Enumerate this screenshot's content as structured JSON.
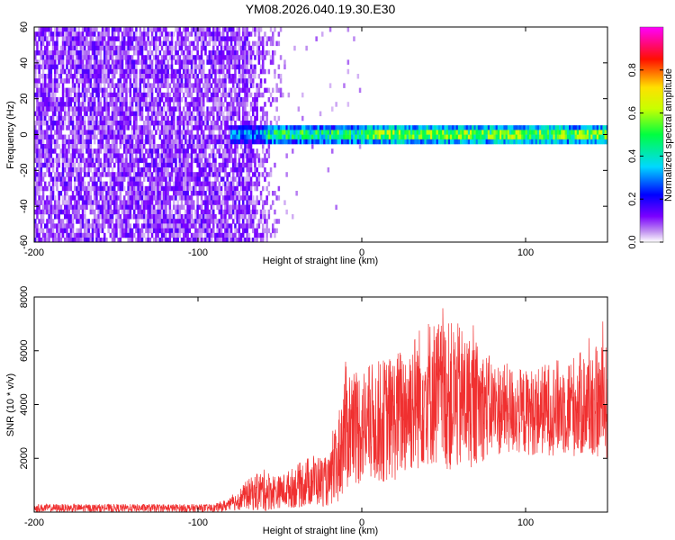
{
  "title": "YM08.2026.040.19.30.E30",
  "chart_data": [
    {
      "type": "heatmap",
      "xlabel": "Height of straight line (km)",
      "ylabel": "Frequency (Hz)",
      "xlim": [
        -200,
        150
      ],
      "ylim": [
        -60,
        60
      ],
      "xticks": [
        -200,
        -100,
        0,
        100
      ],
      "yticks": [
        -60,
        -40,
        -20,
        0,
        20,
        40,
        60
      ],
      "colorbar": {
        "label": "Normalized spectral amplitude",
        "range": [
          0.0,
          1.0
        ],
        "ticks": [
          "0.0",
          "0.2",
          "0.4",
          "0.6",
          "0.8"
        ],
        "colormap": [
          "#ffffff",
          "#c090f0",
          "#7a00ff",
          "#0000ff",
          "#00d8ff",
          "#00ff40",
          "#c8ff00",
          "#ffe000",
          "#ff1000",
          "#ff00ff"
        ]
      },
      "features": {
        "noise_region_x": [
          -200,
          -48
        ],
        "signal_start_x": -80,
        "signal_freq_center_hz": 0,
        "signal_band_halfwidth_hz": 5,
        "peak_amplitude": 1.0
      },
      "grid": false
    },
    {
      "type": "line",
      "xlabel": "Height of straight line (km)",
      "ylabel": "SNR (10 * v/v)",
      "xlim": [
        -200,
        150
      ],
      "ylim": [
        0,
        8000
      ],
      "xticks": [
        -200,
        -100,
        0,
        100
      ],
      "yticks": [
        2000,
        4000,
        6000,
        8000
      ],
      "series_color": "#f03030",
      "envelope": [
        {
          "x": -200,
          "mean": 150,
          "spread": 150
        },
        {
          "x": -150,
          "mean": 150,
          "spread": 150
        },
        {
          "x": -100,
          "mean": 150,
          "spread": 150
        },
        {
          "x": -90,
          "mean": 150,
          "spread": 150
        },
        {
          "x": -80,
          "mean": 280,
          "spread": 250
        },
        {
          "x": -70,
          "mean": 650,
          "spread": 550
        },
        {
          "x": -60,
          "mean": 800,
          "spread": 800
        },
        {
          "x": -50,
          "mean": 750,
          "spread": 600
        },
        {
          "x": -40,
          "mean": 950,
          "spread": 800
        },
        {
          "x": -30,
          "mean": 1200,
          "spread": 1000
        },
        {
          "x": -20,
          "mean": 1100,
          "spread": 900
        },
        {
          "x": -15,
          "mean": 1800,
          "spread": 1600
        },
        {
          "x": -10,
          "mean": 3200,
          "spread": 2400
        },
        {
          "x": 0,
          "mean": 3200,
          "spread": 2200
        },
        {
          "x": 20,
          "mean": 3500,
          "spread": 2400
        },
        {
          "x": 40,
          "mean": 4500,
          "spread": 2800
        },
        {
          "x": 60,
          "mean": 4200,
          "spread": 2800
        },
        {
          "x": 80,
          "mean": 3900,
          "spread": 1800
        },
        {
          "x": 100,
          "mean": 3700,
          "spread": 1600
        },
        {
          "x": 120,
          "mean": 3900,
          "spread": 1800
        },
        {
          "x": 150,
          "mean": 4100,
          "spread": 2200
        }
      ],
      "grid": false
    }
  ]
}
